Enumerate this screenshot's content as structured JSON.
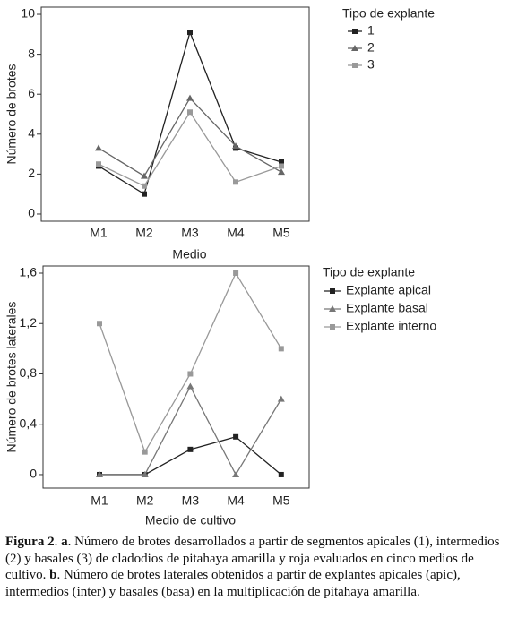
{
  "chart_data": [
    {
      "type": "line",
      "x_label": "Medio",
      "y_label": "Número de brotes",
      "legend_title": "Tipo de explante",
      "categories": [
        "M1",
        "M2",
        "M3",
        "M4",
        "M5"
      ],
      "series": [
        {
          "name": "1",
          "color": "#222222",
          "marker": "square",
          "values": [
            2.4,
            1.0,
            9.1,
            3.3,
            2.6
          ]
        },
        {
          "name": "2",
          "color": "#666666",
          "marker": "triangle",
          "values": [
            3.3,
            1.9,
            5.8,
            3.4,
            2.1
          ]
        },
        {
          "name": "3",
          "color": "#999999",
          "marker": "square",
          "values": [
            2.5,
            1.4,
            5.1,
            1.6,
            2.4
          ]
        }
      ],
      "ylim": [
        -0.36,
        10.36
      ],
      "yticks": [
        0,
        2,
        4,
        6,
        8,
        10
      ],
      "legend": "outside-right"
    },
    {
      "type": "line",
      "x_label": "Medio de cultivo",
      "y_label": "Número de brotes laterales",
      "legend_title": "Tipo de explante",
      "categories": [
        "M1",
        "M2",
        "M3",
        "M4",
        "M5"
      ],
      "series": [
        {
          "name": "Explante apical",
          "color": "#222222",
          "marker": "square",
          "values": [
            0,
            0,
            0.2,
            0.3,
            0
          ]
        },
        {
          "name": "Explante basal",
          "color": "#777777",
          "marker": "triangle",
          "values": [
            0,
            0,
            0.7,
            0,
            0.6
          ]
        },
        {
          "name": "Explante interno",
          "color": "#999999",
          "marker": "square",
          "values": [
            1.2,
            0.18,
            0.8,
            1.6,
            1.0
          ]
        }
      ],
      "ylim": [
        -0.107,
        1.657
      ],
      "yticks": [
        0,
        {
          "value": 0.4,
          "label": "0,4"
        },
        {
          "value": 0.8,
          "label": "0,8"
        },
        {
          "value": 1.2,
          "label": "1,2"
        },
        {
          "value": 1.6,
          "label": "1,6"
        }
      ],
      "legend": "outside-right"
    }
  ],
  "caption": {
    "label": "Figura 2",
    "part_a": "a",
    "text_a": "Número de brotes desarrollados a partir de segmentos apicales (1), intermedios (2) y basales (3) de cladodios de pitahaya amarilla y roja evaluados en cinco medios de cultivo.",
    "part_b": "b",
    "text_b": "Número de brotes laterales obtenidos a partir de explantes apicales (apic), intermedios (inter) y basales (basa) en la multiplicación de pitahaya amarilla."
  }
}
